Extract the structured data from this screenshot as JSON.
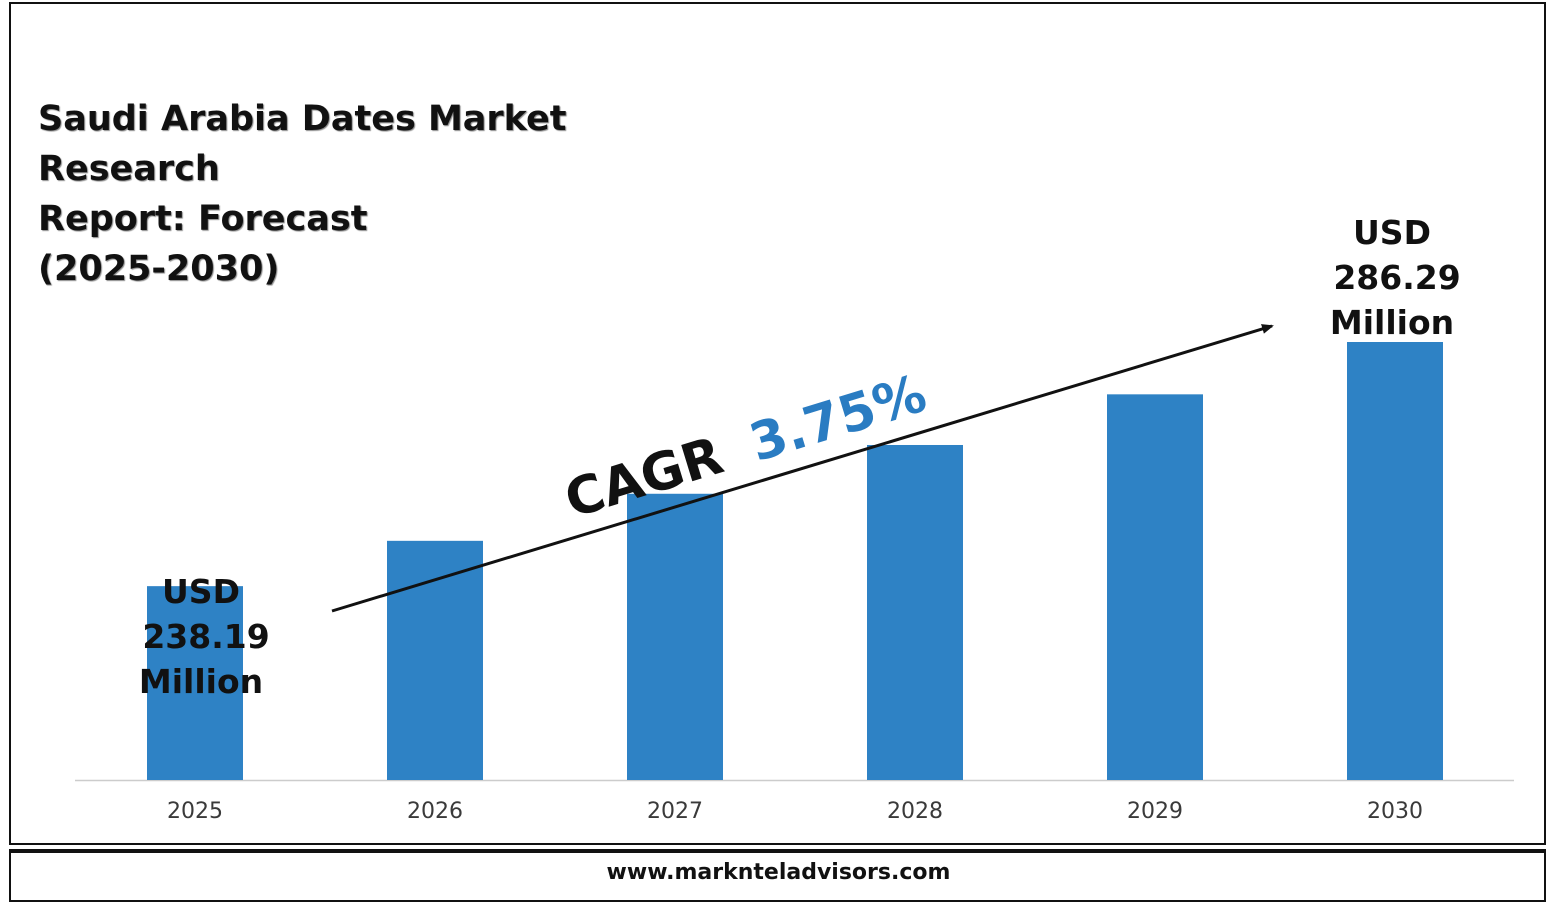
{
  "title_lines": [
    "Saudi Arabia Dates Market Research",
    "Report: Forecast",
    "(2025-2030)"
  ],
  "footer_url": "www.marknteladvisors.com",
  "colors": {
    "bar": "#2e82c5",
    "cagr_value": "#2a7cc2",
    "text": "#111111",
    "axis": "#cccccc"
  },
  "chart_data": {
    "type": "bar",
    "categories": [
      "2025",
      "2026",
      "2027",
      "2028",
      "2029",
      "2030"
    ],
    "values": [
      238.19,
      247.12,
      256.39,
      266.0,
      275.98,
      286.29
    ],
    "ylim": [
      200,
      300
    ],
    "grid": false,
    "legend": "none",
    "annotations": {
      "start_label": [
        "USD",
        "238.19",
        "Million"
      ],
      "end_label": [
        "USD",
        "286.29",
        "Million"
      ],
      "cagr_prefix": "CAGR",
      "cagr_value": "3.75%"
    }
  }
}
